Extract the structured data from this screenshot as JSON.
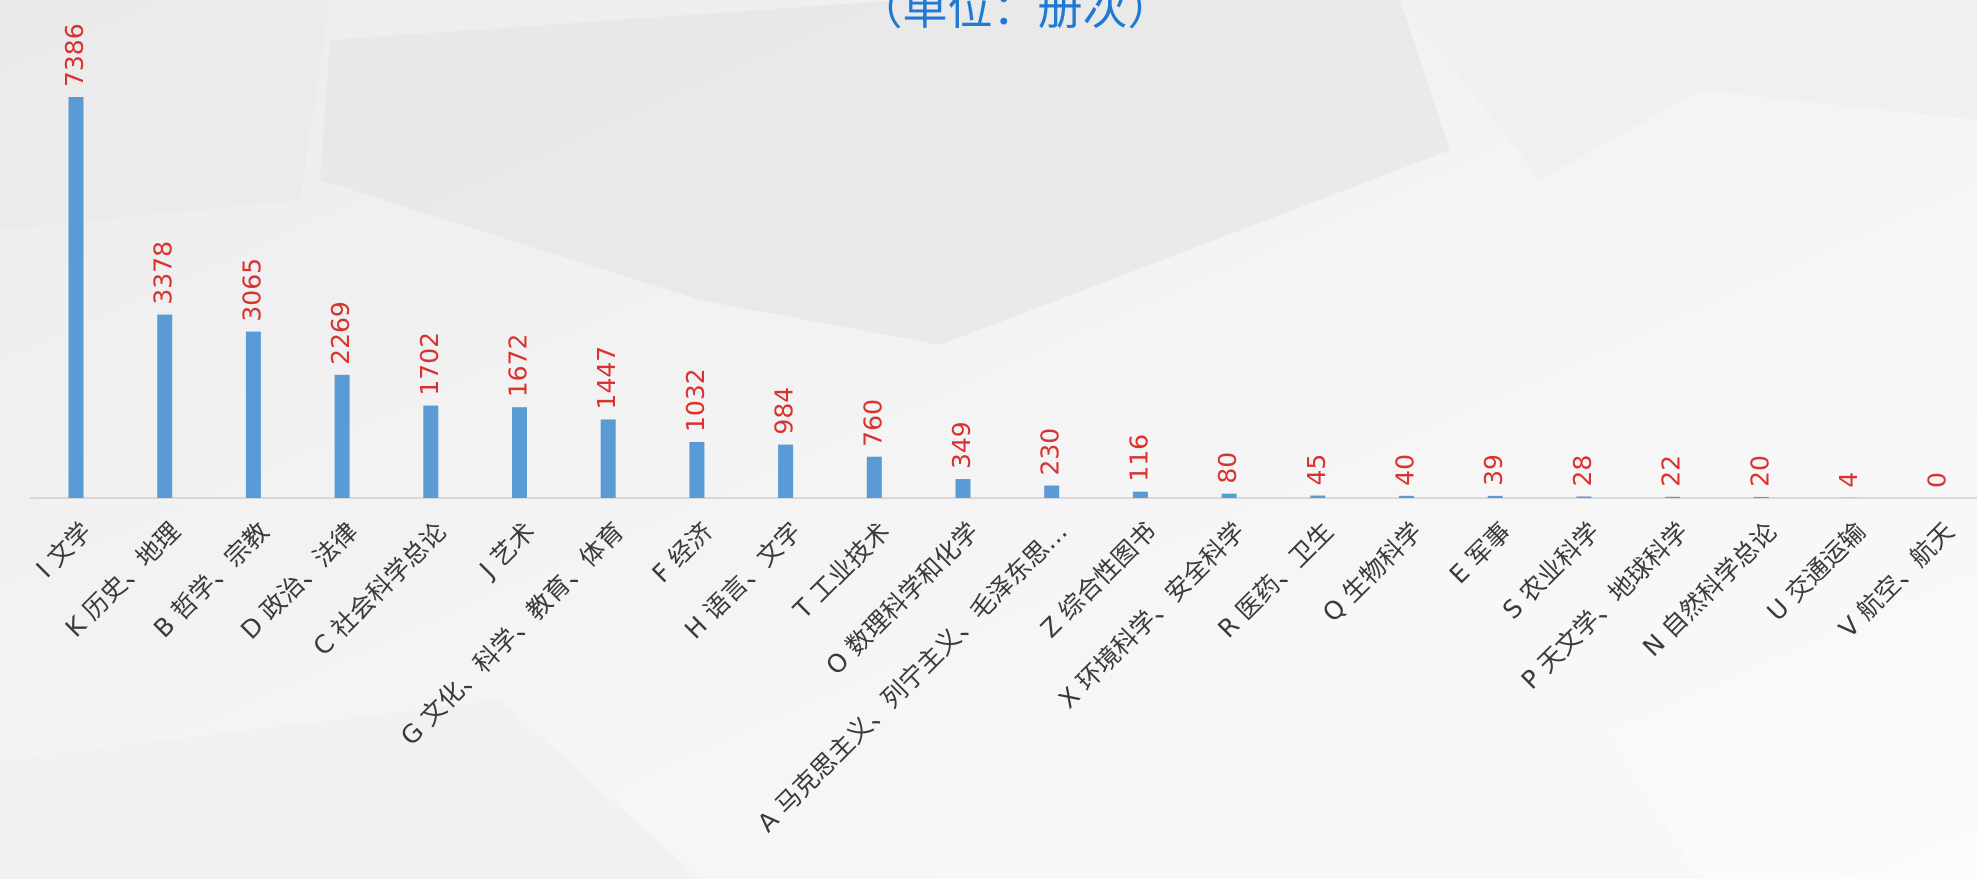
{
  "chart_data": {
    "type": "bar",
    "subtitle": "（单位：册次）",
    "categories": [
      "I 文学",
      "K 历史、地理",
      "B 哲学、宗教",
      "D 政治、法律",
      "C 社会科学总论",
      "J 艺术",
      "G 文化、科学、教育、体育",
      "F 经济",
      "H 语言、文字",
      "T 工业技术",
      "O 数理科学和化学",
      "A 马克思主义、列宁主义、毛泽东思…",
      "Z 综合性图书",
      "X 环境科学、安全科学",
      "R 医药、卫生",
      "Q 生物科学",
      "E 军事",
      "S 农业科学",
      "P 天文学、地球科学",
      "N 自然科学总论",
      "U 交通运输",
      "V 航空、航天"
    ],
    "values": [
      7386,
      3378,
      3065,
      2269,
      1702,
      1672,
      1447,
      1032,
      984,
      760,
      349,
      230,
      116,
      80,
      45,
      40,
      39,
      28,
      22,
      20,
      4,
      0
    ],
    "color": "#5b9bd5",
    "value_label_color": "#d9322f",
    "subtitle_color": "#1f7ad4"
  }
}
